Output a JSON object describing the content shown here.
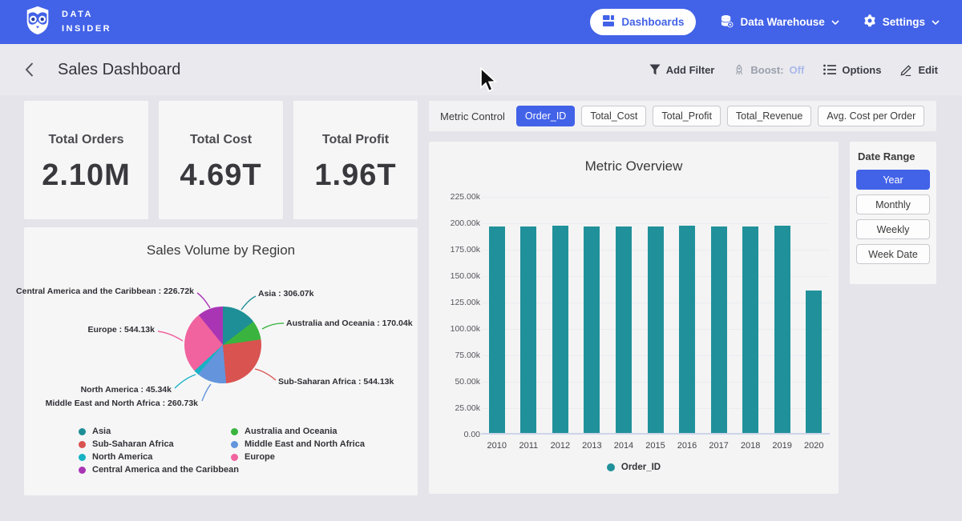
{
  "nav": {
    "brand_line1": "DATA",
    "brand_line2": "INSIDER",
    "dashboards_label": "Dashboards",
    "data_warehouse_label": "Data Warehouse",
    "settings_label": "Settings"
  },
  "toolbar": {
    "title": "Sales Dashboard",
    "add_filter_label": "Add Filter",
    "boost_label": "Boost:",
    "boost_value": "Off",
    "options_label": "Options",
    "edit_label": "Edit"
  },
  "kpis": [
    {
      "label": "Total Orders",
      "value": "2.10M"
    },
    {
      "label": "Total Cost",
      "value": "4.69T"
    },
    {
      "label": "Total Profit",
      "value": "1.96T"
    }
  ],
  "metric_control": {
    "label": "Metric Control",
    "options": [
      {
        "label": "Order_ID",
        "selected": true
      },
      {
        "label": "Total_Cost",
        "selected": false
      },
      {
        "label": "Total_Profit",
        "selected": false
      },
      {
        "label": "Total_Revenue",
        "selected": false
      },
      {
        "label": "Avg. Cost per Order",
        "selected": false
      }
    ]
  },
  "date_range": {
    "label": "Date Range",
    "options": [
      {
        "label": "Year",
        "selected": true
      },
      {
        "label": "Monthly",
        "selected": false
      },
      {
        "label": "Weekly",
        "selected": false
      },
      {
        "label": "Week Date",
        "selected": false
      }
    ]
  },
  "colors": {
    "nav_blue": "#4262e8",
    "accent_blue": "#4262e8",
    "bar_teal": "#20919a",
    "boost_off_blue": "#aab8ea"
  },
  "chart_data": [
    {
      "type": "bar",
      "title": "Metric Overview",
      "categories": [
        "2010",
        "2011",
        "2012",
        "2013",
        "2014",
        "2015",
        "2016",
        "2017",
        "2018",
        "2019",
        "2020"
      ],
      "series": [
        {
          "name": "Order_ID",
          "values": [
            195500,
            195400,
            196600,
            195800,
            195500,
            195200,
            196200,
            195600,
            195400,
            196100,
            134800
          ]
        }
      ],
      "ylim": [
        0,
        225000
      ],
      "ytick_step": 25000,
      "ytick_labels": [
        "0.00",
        "25.00k",
        "50.00k",
        "75.00k",
        "100.00k",
        "125.00k",
        "150.00k",
        "175.00k",
        "200.00k",
        "225.00k"
      ],
      "bar_color": "#20919a",
      "legend": [
        "Order_ID"
      ],
      "legend_position": "bottom",
      "grid": true
    },
    {
      "type": "pie",
      "title": "Sales Volume by Region",
      "slices": [
        {
          "label": "Asia",
          "value": 306070,
          "display": "306.07k",
          "color": "#1e8f96"
        },
        {
          "label": "Australia and Oceania",
          "value": 170040,
          "display": "170.04k",
          "color": "#3ab43e"
        },
        {
          "label": "Sub-Saharan Africa",
          "value": 544130,
          "display": "544.13k",
          "color": "#d95350"
        },
        {
          "label": "Middle East and North Africa",
          "value": 260730,
          "display": "260.73k",
          "color": "#6495dc"
        },
        {
          "label": "North America",
          "value": 45340,
          "display": "45.34k",
          "color": "#17b2c4"
        },
        {
          "label": "Europe",
          "value": 544130,
          "display": "544.13k",
          "color": "#f0639e"
        },
        {
          "label": "Central America and the Caribbean",
          "value": 226720,
          "display": "226.72k",
          "color": "#a935b5"
        }
      ],
      "legend_columns": [
        [
          "Asia",
          "Sub-Saharan Africa",
          "North America",
          "Central America and the Caribbean"
        ],
        [
          "Australia and Oceania",
          "Middle East and North Africa",
          "Europe"
        ]
      ]
    }
  ]
}
